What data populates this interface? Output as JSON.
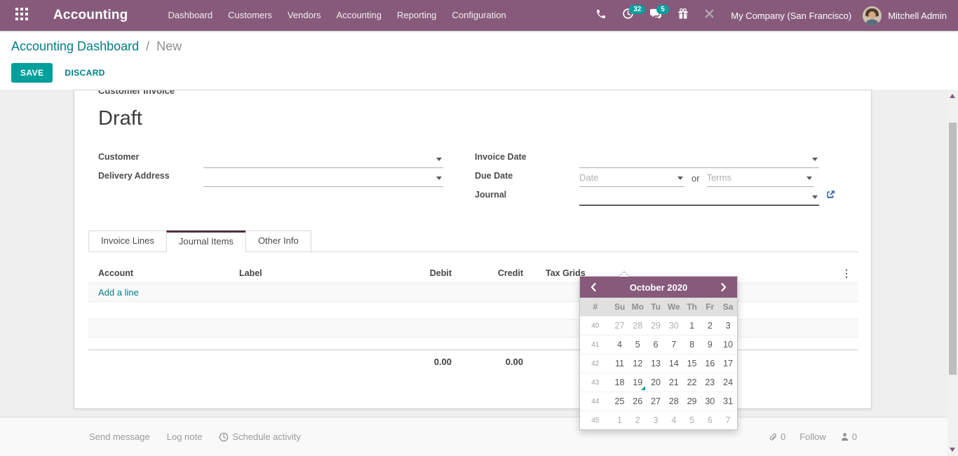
{
  "colors": {
    "brand_purple": "#875A7B",
    "accent_teal": "#00A09D",
    "link_teal": "#017E84",
    "today_marker": "#00A09D"
  },
  "navbar": {
    "app_name": "Accounting",
    "menu": [
      "Dashboard",
      "Customers",
      "Vendors",
      "Accounting",
      "Reporting",
      "Configuration"
    ],
    "activity_badge": "32",
    "message_badge": "5",
    "company": "My Company (San Francisco)",
    "user_name": "Mitchell Admin"
  },
  "control_panel": {
    "breadcrumb_parent": "Accounting Dashboard",
    "breadcrumb_separator": "/",
    "breadcrumb_current": "New",
    "save_label": "SAVE",
    "discard_label": "DISCARD"
  },
  "form": {
    "doc_type_label": "Customer Invoice",
    "status": "Draft",
    "customer_label": "Customer",
    "delivery_address_label": "Delivery Address",
    "invoice_date_label": "Invoice Date",
    "due_date_label": "Due Date",
    "date_placeholder": "Date",
    "or_label": "or",
    "terms_placeholder": "Terms",
    "journal_label": "Journal"
  },
  "tabs": [
    {
      "label": "Invoice Lines"
    },
    {
      "label": "Journal Items"
    },
    {
      "label": "Other Info"
    }
  ],
  "active_tab": "Journal Items",
  "journal_items_table": {
    "columns": [
      "Account",
      "Label",
      "Debit",
      "Credit",
      "Tax Grids"
    ],
    "add_line_label": "Add a line",
    "total_debit": "0.00",
    "total_credit": "0.00"
  },
  "datepicker": {
    "title": "October 2020",
    "week_header": "#",
    "day_headers": [
      "Su",
      "Mo",
      "Tu",
      "We",
      "Th",
      "Fr",
      "Sa"
    ],
    "today": "19",
    "weeks": [
      {
        "num": "40",
        "days": [
          {
            "d": "27",
            "muted": true
          },
          {
            "d": "28",
            "muted": true
          },
          {
            "d": "29",
            "muted": true
          },
          {
            "d": "30",
            "muted": true
          },
          {
            "d": "1"
          },
          {
            "d": "2"
          },
          {
            "d": "3"
          }
        ]
      },
      {
        "num": "41",
        "days": [
          {
            "d": "4"
          },
          {
            "d": "5"
          },
          {
            "d": "6"
          },
          {
            "d": "7"
          },
          {
            "d": "8"
          },
          {
            "d": "9"
          },
          {
            "d": "10"
          }
        ]
      },
      {
        "num": "42",
        "days": [
          {
            "d": "11"
          },
          {
            "d": "12"
          },
          {
            "d": "13"
          },
          {
            "d": "14"
          },
          {
            "d": "15"
          },
          {
            "d": "16"
          },
          {
            "d": "17"
          }
        ]
      },
      {
        "num": "43",
        "days": [
          {
            "d": "18"
          },
          {
            "d": "19",
            "today": true
          },
          {
            "d": "20"
          },
          {
            "d": "21"
          },
          {
            "d": "22"
          },
          {
            "d": "23"
          },
          {
            "d": "24"
          }
        ]
      },
      {
        "num": "44",
        "days": [
          {
            "d": "25"
          },
          {
            "d": "26"
          },
          {
            "d": "27"
          },
          {
            "d": "28"
          },
          {
            "d": "29"
          },
          {
            "d": "30"
          },
          {
            "d": "31"
          }
        ]
      },
      {
        "num": "45",
        "days": [
          {
            "d": "1",
            "muted": true
          },
          {
            "d": "2",
            "muted": true
          },
          {
            "d": "3",
            "muted": true
          },
          {
            "d": "4",
            "muted": true
          },
          {
            "d": "5",
            "muted": true
          },
          {
            "d": "6",
            "muted": true
          },
          {
            "d": "7",
            "muted": true
          }
        ]
      }
    ]
  },
  "footer": {
    "send_message": "Send message",
    "log_note": "Log note",
    "schedule_activity": "Schedule activity",
    "attachments_count": "0",
    "follow": "Follow",
    "followers_count": "0"
  }
}
